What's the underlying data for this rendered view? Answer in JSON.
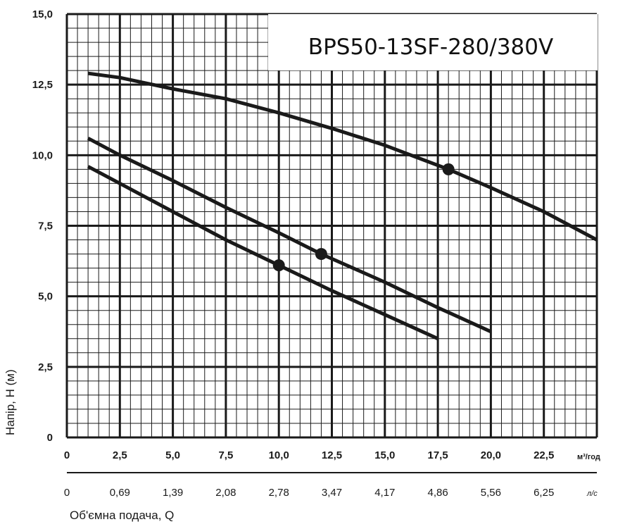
{
  "chart_data": {
    "type": "line",
    "title": "BPS50-13SF-280/380V",
    "ylabel": "Напір, Н (м)",
    "xlabel": "Об'ємна  подача, Q",
    "x_unit": "м³/год",
    "x2_unit": "л/с",
    "xlim": [
      0,
      25
    ],
    "ylim": [
      0,
      15
    ],
    "grid": true,
    "x_ticks": [
      "0",
      "2,5",
      "5,0",
      "7,5",
      "10,0",
      "12,5",
      "15,0",
      "17,5",
      "20,0",
      "22,5"
    ],
    "x2_ticks": [
      "0",
      "0,69",
      "1,39",
      "2,08",
      "2,78",
      "3,47",
      "4,17",
      "4,86",
      "5,56",
      "6,25"
    ],
    "y_ticks": [
      "0",
      "2,5",
      "5,0",
      "7,5",
      "10,0",
      "12,5",
      "15,0"
    ],
    "series": [
      {
        "x": [
          1.0,
          2.5,
          5.0,
          7.5,
          10.0,
          12.5,
          15.0,
          18.0,
          20.0,
          22.5,
          25.0
        ],
        "y": [
          12.9,
          12.75,
          12.35,
          12.0,
          11.5,
          10.95,
          10.35,
          9.5,
          8.85,
          8.0,
          7.0
        ],
        "marker": [
          18.0,
          9.5
        ]
      },
      {
        "x": [
          1.0,
          2.5,
          5.0,
          7.5,
          10.0,
          12.0,
          15.0,
          17.5,
          20.0
        ],
        "y": [
          10.6,
          10.0,
          9.1,
          8.15,
          7.25,
          6.5,
          5.5,
          4.6,
          3.75
        ],
        "marker": [
          12.0,
          6.5
        ]
      },
      {
        "x": [
          1.0,
          2.5,
          5.0,
          7.5,
          10.0,
          12.5,
          15.0,
          17.5
        ],
        "y": [
          9.6,
          9.0,
          8.0,
          7.0,
          6.1,
          5.2,
          4.35,
          3.5
        ],
        "marker": [
          10.0,
          6.1
        ]
      }
    ],
    "colors": {
      "curve": "#1a1a1a",
      "grid": "#1a1a1a",
      "background": "#ffffff"
    }
  }
}
